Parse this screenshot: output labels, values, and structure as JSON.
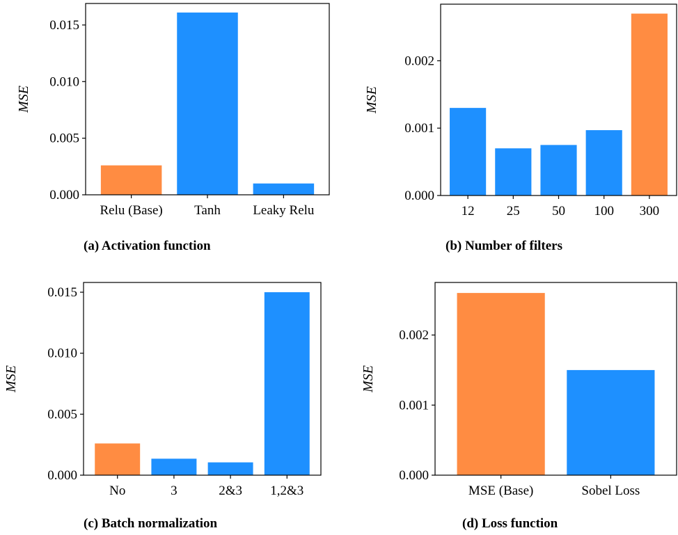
{
  "colors": {
    "base": "#FF8C42",
    "variant": "#1E90FF"
  },
  "chart_data": [
    {
      "type": "bar",
      "caption": "(a) Activation function",
      "ylabel": "MSE",
      "categories": [
        "Relu (Base)",
        "Tanh",
        "Leaky Relu"
      ],
      "values": [
        0.0026,
        0.0161,
        0.001
      ],
      "highlight": [
        true,
        false,
        false
      ],
      "ylim": [
        0,
        0.0169
      ],
      "yticks": [
        0,
        0.005,
        0.01,
        0.015
      ],
      "ytick_labels": [
        "0.000",
        "0.005",
        "0.010",
        "0.015"
      ],
      "grid": false
    },
    {
      "type": "bar",
      "caption": "(b) Number of filters",
      "ylabel": "MSE",
      "categories": [
        "12",
        "25",
        "50",
        "100",
        "300"
      ],
      "values": [
        0.0013,
        0.0007,
        0.00075,
        0.00097,
        0.0027
      ],
      "highlight": [
        false,
        false,
        false,
        false,
        true
      ],
      "ylim": [
        0,
        0.00284
      ],
      "yticks": [
        0,
        0.001,
        0.002
      ],
      "ytick_labels": [
        "0.000",
        "0.001",
        "0.002"
      ],
      "grid": false
    },
    {
      "type": "bar",
      "caption": "(c) Batch normalization",
      "ylabel": "MSE",
      "categories": [
        "No",
        "3",
        "2&3",
        "1,2&3"
      ],
      "values": [
        0.0026,
        0.00135,
        0.00105,
        0.015
      ],
      "highlight": [
        true,
        false,
        false,
        false
      ],
      "ylim": [
        0,
        0.0158
      ],
      "yticks": [
        0,
        0.005,
        0.01,
        0.015
      ],
      "ytick_labels": [
        "0.000",
        "0.005",
        "0.010",
        "0.015"
      ],
      "grid": false
    },
    {
      "type": "bar",
      "caption": "(d) Loss function",
      "ylabel": "MSE",
      "categories": [
        "MSE (Base)",
        "Sobel Loss"
      ],
      "values": [
        0.0026,
        0.0015
      ],
      "highlight": [
        true,
        false
      ],
      "ylim": [
        0,
        0.00275
      ],
      "yticks": [
        0,
        0.001,
        0.002
      ],
      "ytick_labels": [
        "0.000",
        "0.001",
        "0.002"
      ],
      "grid": false
    }
  ]
}
